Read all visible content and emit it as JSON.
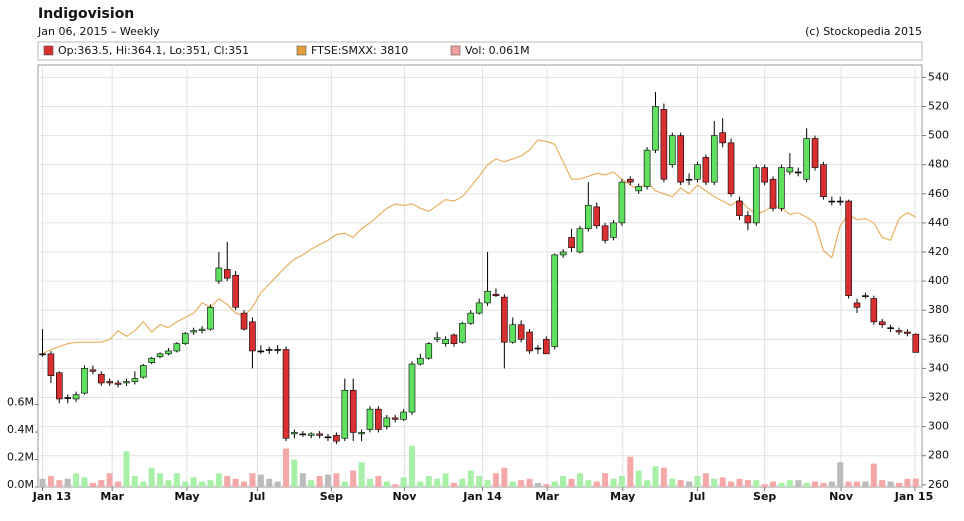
{
  "chart_data": {
    "type": "candlestick",
    "title": "Indigovision",
    "subtitle": "Jan 06, 2015 – Weekly",
    "credit": "(c) Stockopedia 2015",
    "legend": [
      {
        "label": "Op:363.5, Hi:364.1, Lo:351, Cl:351",
        "color": "#d83030"
      },
      {
        "label": "FTSE:SMXX: 3810",
        "color": "#e0a040"
      },
      {
        "label": "Vol: 0.061M",
        "color": "#f4a0a0"
      }
    ],
    "up_color": "#5fe05f",
    "down_color": "#d83030",
    "flat_color": "#000000",
    "ylim": [
      258.5,
      548.5
    ],
    "yticks": [
      260,
      280,
      300,
      320,
      340,
      360,
      380,
      400,
      420,
      440,
      460,
      480,
      500,
      520,
      540
    ],
    "y2lim": [
      0,
      3.07
    ],
    "y2ticks": [
      {
        "value": 0,
        "label": "0.0M"
      },
      {
        "value": 0.2,
        "label": "0.2M"
      },
      {
        "value": 0.4,
        "label": "0.4M"
      },
      {
        "value": 0.6,
        "label": "0.6M"
      }
    ],
    "xlim": [
      -0.3,
      104.5
    ],
    "xticks": [
      {
        "value": 0,
        "label": "Jan 13"
      },
      {
        "value": 8.3,
        "label": "Mar"
      },
      {
        "value": 17.2,
        "label": "May"
      },
      {
        "value": 25.6,
        "label": "Jul"
      },
      {
        "value": 34.4,
        "label": "Sep"
      },
      {
        "value": 43.1,
        "label": "Nov"
      },
      {
        "value": 52.4,
        "label": "Jan 14"
      },
      {
        "value": 60.1,
        "label": "Mar"
      },
      {
        "value": 69.1,
        "label": "May"
      },
      {
        "value": 78,
        "label": "Jul"
      },
      {
        "value": 86,
        "label": "Sep"
      },
      {
        "value": 95.1,
        "label": "Nov"
      },
      {
        "value": 103.9,
        "label": "Jan 15"
      }
    ],
    "grid": true,
    "ohlc": [
      [
        350,
        367,
        348,
        350
      ],
      [
        350,
        352,
        330,
        335
      ],
      [
        337,
        338,
        316,
        319
      ],
      [
        320,
        322,
        316,
        320
      ],
      [
        319,
        324,
        317,
        322
      ],
      [
        323,
        342,
        322,
        340
      ],
      [
        339,
        342,
        336,
        338
      ],
      [
        336,
        338,
        328,
        330
      ],
      [
        331,
        333,
        328,
        330
      ],
      [
        330,
        332,
        327,
        329
      ],
      [
        330,
        333,
        328,
        331
      ],
      [
        331,
        338,
        329,
        333
      ],
      [
        334,
        343,
        333,
        342
      ],
      [
        344,
        348,
        343,
        347
      ],
      [
        348,
        351,
        347,
        350
      ],
      [
        350,
        354,
        349,
        352
      ],
      [
        352,
        358,
        351,
        357
      ],
      [
        357,
        365,
        356,
        364
      ],
      [
        365,
        368,
        363,
        366
      ],
      [
        366,
        369,
        364,
        367
      ],
      [
        367,
        384,
        366,
        382
      ],
      [
        400,
        420,
        398,
        409
      ],
      [
        408,
        427,
        400,
        402
      ],
      [
        404,
        407,
        380,
        382
      ],
      [
        378,
        380,
        366,
        367
      ],
      [
        372,
        375,
        340,
        352
      ],
      [
        352,
        356,
        350,
        352
      ],
      [
        353,
        355,
        350,
        353
      ],
      [
        353,
        356,
        350,
        353
      ],
      [
        353,
        355,
        290,
        292
      ],
      [
        295,
        298,
        292,
        296
      ],
      [
        295,
        297,
        293,
        295
      ],
      [
        294,
        296,
        292,
        295
      ],
      [
        295,
        297,
        292,
        294
      ],
      [
        293,
        295,
        290,
        293
      ],
      [
        294,
        296,
        288,
        290
      ],
      [
        292,
        333,
        290,
        325
      ],
      [
        325,
        333,
        290,
        296
      ],
      [
        295,
        298,
        290,
        296
      ],
      [
        298,
        314,
        296,
        312
      ],
      [
        312,
        314,
        296,
        298
      ],
      [
        300,
        308,
        298,
        306
      ],
      [
        306,
        308,
        303,
        305
      ],
      [
        305,
        312,
        304,
        310
      ],
      [
        310,
        345,
        308,
        343
      ],
      [
        343,
        350,
        342,
        347
      ],
      [
        347,
        358,
        346,
        357
      ],
      [
        360,
        365,
        358,
        361
      ],
      [
        357,
        362,
        355,
        360
      ],
      [
        363,
        364,
        355,
        357
      ],
      [
        358,
        372,
        357,
        371
      ],
      [
        371,
        380,
        370,
        378
      ],
      [
        378,
        388,
        377,
        385
      ],
      [
        385,
        420,
        383,
        393
      ],
      [
        391,
        395,
        389,
        390
      ],
      [
        389,
        391,
        340,
        358
      ],
      [
        358,
        375,
        357,
        370
      ],
      [
        370,
        373,
        358,
        360
      ],
      [
        365,
        367,
        350,
        352
      ],
      [
        354,
        356,
        350,
        354
      ],
      [
        360,
        362,
        350,
        350
      ],
      [
        355,
        419,
        353,
        418
      ],
      [
        418,
        422,
        416,
        420
      ],
      [
        430,
        436,
        420,
        423
      ],
      [
        420,
        438,
        419,
        436
      ],
      [
        436,
        468,
        434,
        452
      ],
      [
        451,
        454,
        436,
        438
      ],
      [
        438,
        440,
        426,
        428
      ],
      [
        430,
        442,
        428,
        440
      ],
      [
        440,
        470,
        438,
        468
      ],
      [
        470,
        472,
        466,
        468
      ],
      [
        462,
        467,
        460,
        465
      ],
      [
        465,
        492,
        463,
        490
      ],
      [
        490,
        530,
        488,
        520
      ],
      [
        518,
        522,
        468,
        470
      ],
      [
        480,
        502,
        478,
        500
      ],
      [
        500,
        502,
        466,
        468
      ],
      [
        470,
        474,
        466,
        470
      ],
      [
        470,
        482,
        468,
        480
      ],
      [
        485,
        487,
        466,
        468
      ],
      [
        468,
        510,
        466,
        500
      ],
      [
        502,
        512,
        492,
        495
      ],
      [
        495,
        498,
        458,
        460
      ],
      [
        455,
        458,
        442,
        445
      ],
      [
        445,
        448,
        435,
        440
      ],
      [
        440,
        480,
        438,
        478
      ],
      [
        478,
        480,
        466,
        468
      ],
      [
        470,
        472,
        448,
        450
      ],
      [
        450,
        480,
        448,
        478
      ],
      [
        475,
        488,
        473,
        478
      ],
      [
        475,
        478,
        472,
        475
      ],
      [
        470,
        505,
        468,
        498
      ],
      [
        498,
        500,
        476,
        478
      ],
      [
        480,
        482,
        456,
        458
      ],
      [
        455,
        458,
        452,
        455
      ],
      [
        455,
        458,
        452,
        455
      ],
      [
        455,
        456,
        388,
        390
      ],
      [
        385,
        388,
        378,
        382
      ],
      [
        390,
        392,
        388,
        390
      ],
      [
        388,
        390,
        370,
        372
      ],
      [
        372,
        374,
        368,
        370
      ],
      [
        368,
        370,
        365,
        368
      ],
      [
        366,
        368,
        363,
        365
      ],
      [
        365,
        367,
        362,
        364
      ],
      [
        363.5,
        364.1,
        351,
        351
      ]
    ],
    "volume": {
      "axis": "y2",
      "up_color": "#a8f0a8",
      "down_color": "#f4a8a8",
      "flat_color": "#bbbbbb",
      "values": [
        0.06,
        0.08,
        0.05,
        0.06,
        0.1,
        0.07,
        0.03,
        0.05,
        0.1,
        0.04,
        0.26,
        0.08,
        0.04,
        0.14,
        0.1,
        0.05,
        0.1,
        0.04,
        0.07,
        0.04,
        0.05,
        0.1,
        0.08,
        0.06,
        0.04,
        0.1,
        0.09,
        0.06,
        0.04,
        0.28,
        0.2,
        0.1,
        0.05,
        0.08,
        0.09,
        0.1,
        0.04,
        0.12,
        0.18,
        0.06,
        0.08,
        0.04,
        0.02,
        0.07,
        0.3,
        0.04,
        0.08,
        0.06,
        0.1,
        0.03,
        0.06,
        0.12,
        0.08,
        0.05,
        0.1,
        0.14,
        0.04,
        0.05,
        0.06,
        0.03,
        0.02,
        0.04,
        0.08,
        0.06,
        0.1,
        0.05,
        0.04,
        0.1,
        0.06,
        0.08,
        0.22,
        0.12,
        0.05,
        0.15,
        0.14,
        0.06,
        0.05,
        0.04,
        0.08,
        0.1,
        0.06,
        0.07,
        0.04,
        0.06,
        0.05,
        0.05,
        0.02,
        0.04,
        0.03,
        0.05,
        0.05,
        0.03,
        0.04,
        0.03,
        0.04,
        0.18,
        0.04,
        0.04,
        0.04,
        0.17,
        0.05,
        0.04,
        0.03,
        0.06,
        0.061
      ]
    },
    "ftse": {
      "color": "#e8b060",
      "values": [
        350,
        353,
        355,
        357,
        358,
        358,
        358,
        358,
        360,
        366,
        362,
        366,
        372,
        365,
        370,
        368,
        372,
        375,
        378,
        385,
        382,
        388,
        384,
        378,
        376,
        382,
        392,
        398,
        404,
        410,
        415,
        418,
        422,
        425,
        428,
        432,
        433,
        430,
        436,
        440,
        445,
        450,
        453,
        452,
        453,
        450,
        448,
        452,
        456,
        455,
        458,
        465,
        472,
        480,
        484,
        482,
        484,
        486,
        490,
        497,
        496,
        494,
        482,
        470,
        470,
        472,
        474,
        473,
        475,
        470,
        466,
        463,
        468,
        462,
        460,
        458,
        464,
        460,
        466,
        462,
        458,
        455,
        452,
        456,
        450,
        446,
        448,
        452,
        450,
        446,
        447,
        444,
        440,
        421,
        416,
        438,
        446,
        442,
        443,
        440,
        430,
        428,
        443,
        447,
        444
      ]
    }
  }
}
